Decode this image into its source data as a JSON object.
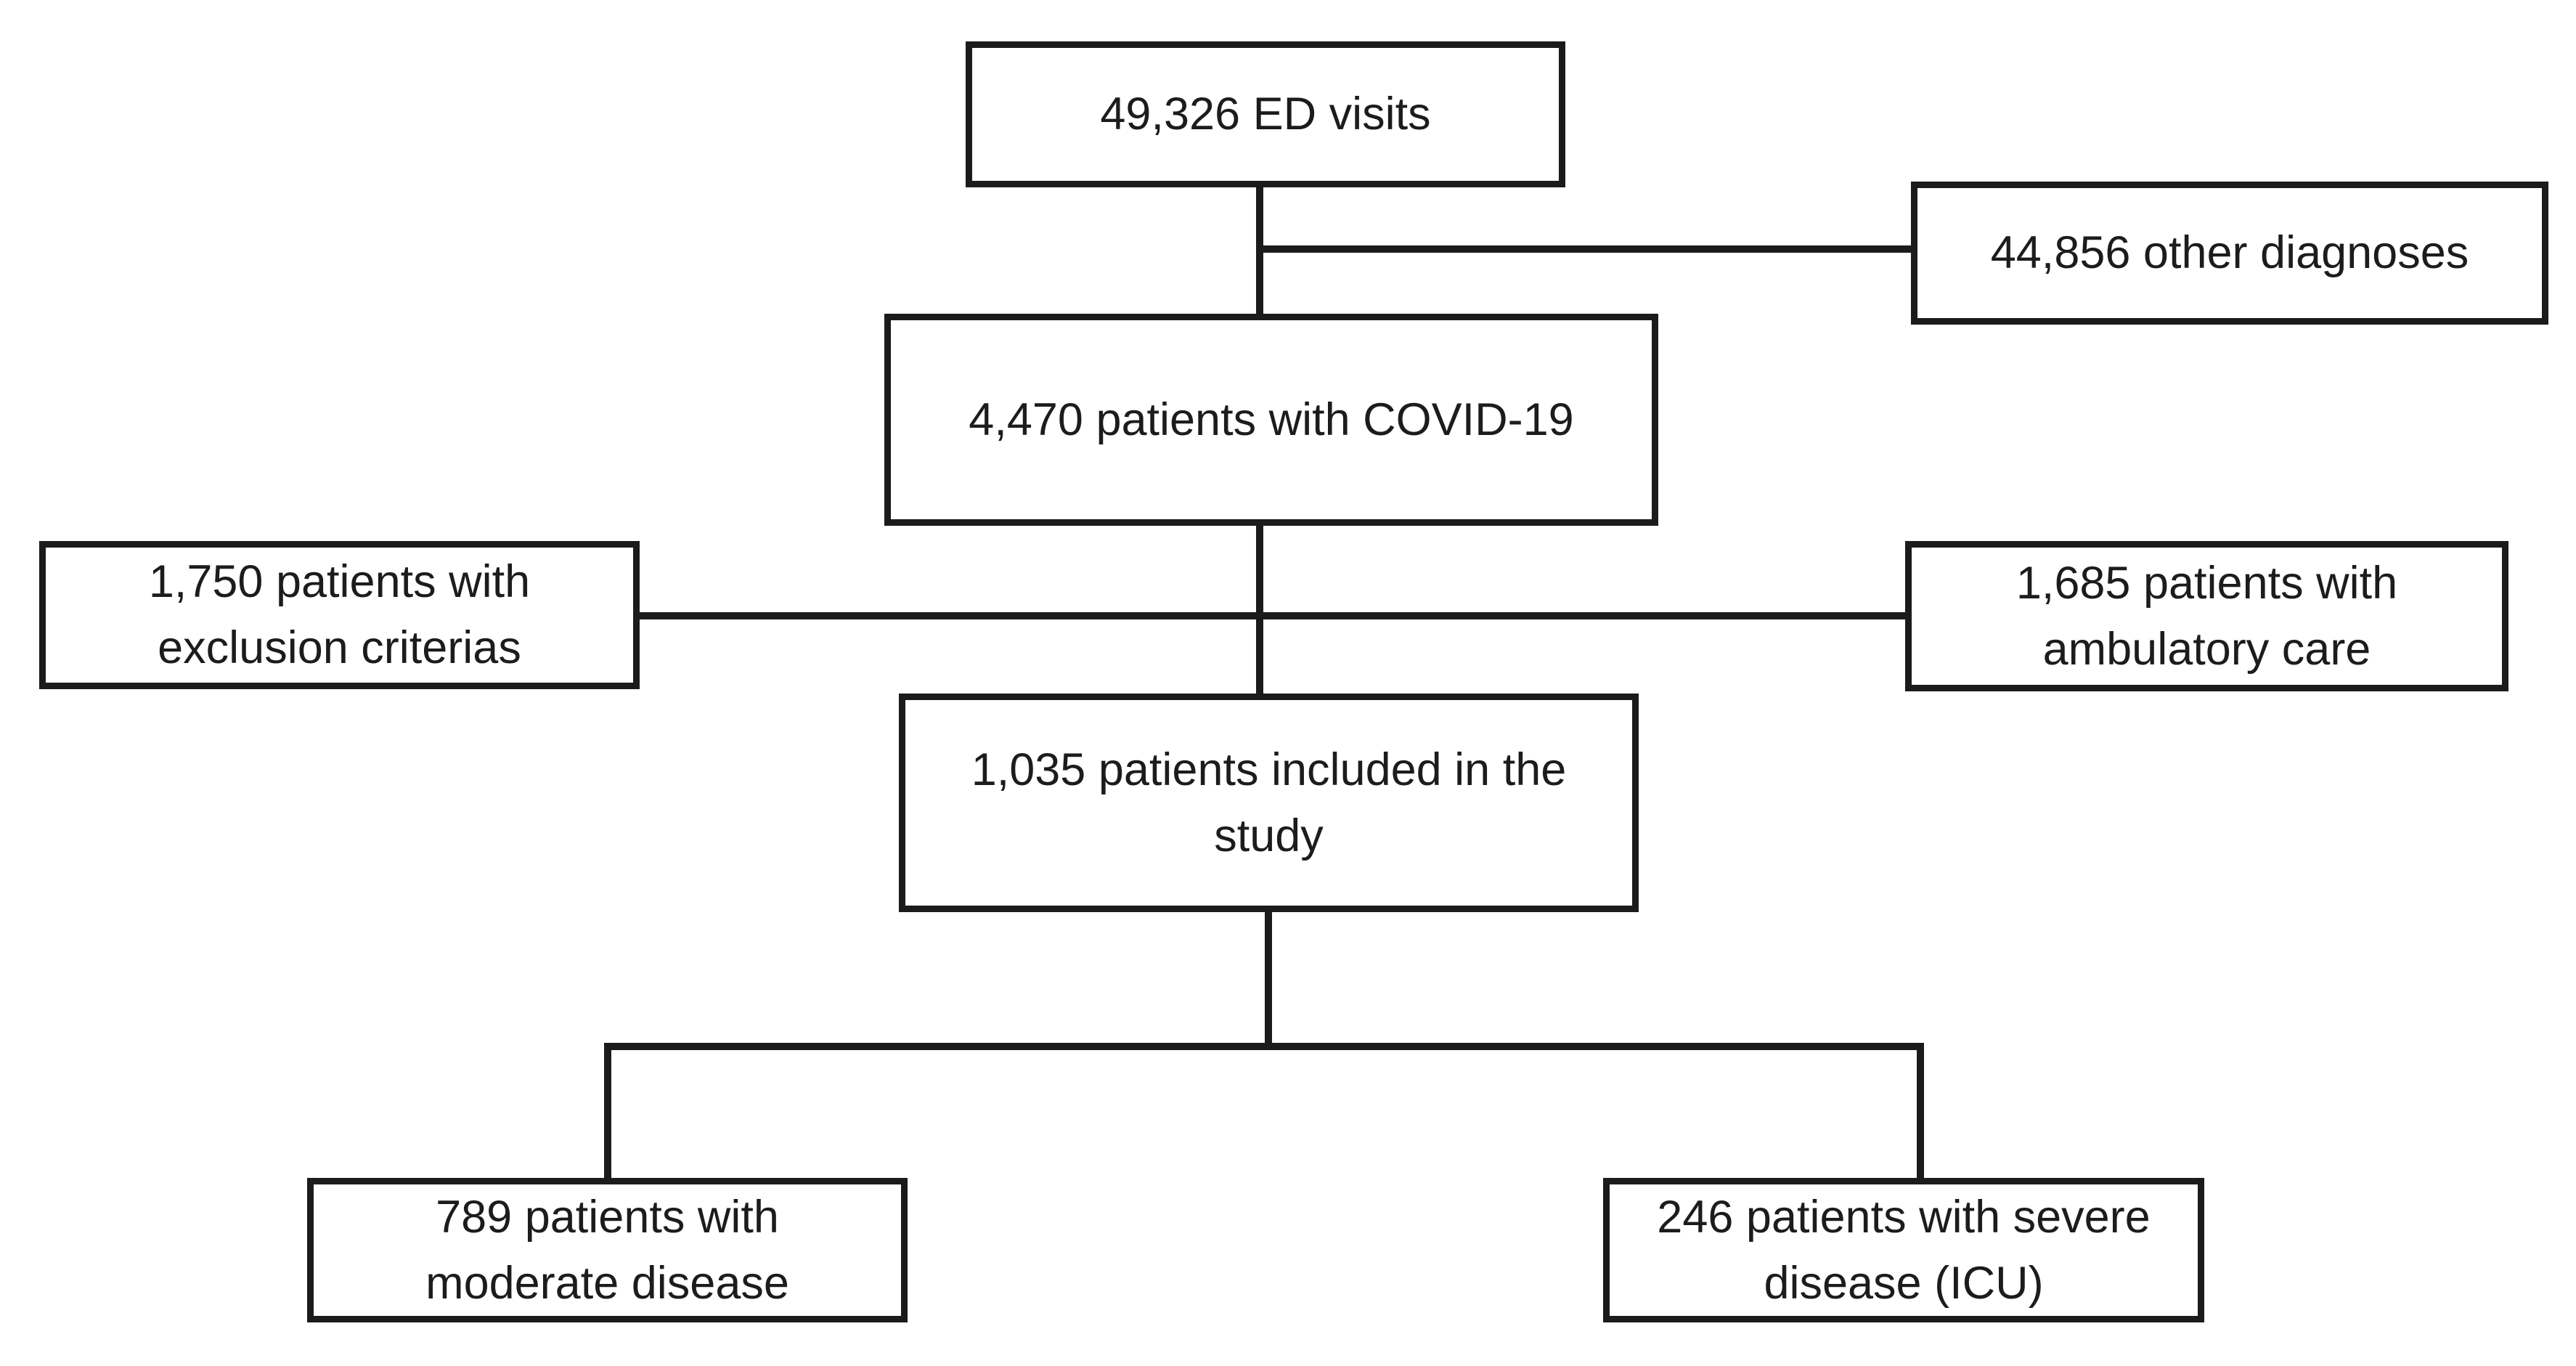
{
  "diagram": {
    "kind": "patient-flow-diagram",
    "nodes": [
      {
        "id": "ed-visits",
        "count": "49,326",
        "label": "49,326 ED visits"
      },
      {
        "id": "other-diagnoses",
        "count": "44,856",
        "label": "44,856 other diagnoses"
      },
      {
        "id": "covid-patients",
        "count": "4,470",
        "label": "4,470 patients with COVID-19"
      },
      {
        "id": "excluded-patients",
        "count": "1,750",
        "label": "1,750 patients with\nexclusion criterias"
      },
      {
        "id": "ambulatory-care",
        "count": "1,685",
        "label": "1,685 patients with\nambulatory care"
      },
      {
        "id": "included-patients",
        "count": "1,035",
        "label": "1,035 patients included in the\nstudy"
      },
      {
        "id": "moderate-disease",
        "count": "789",
        "label": "789 patients with\nmoderate disease"
      },
      {
        "id": "severe-disease",
        "count": "246",
        "label": "246 patients with severe\ndisease (ICU)"
      }
    ],
    "edges": [
      {
        "from": "ed-visits",
        "to": "other-diagnoses"
      },
      {
        "from": "ed-visits",
        "to": "covid-patients"
      },
      {
        "from": "covid-patients",
        "to": "excluded-patients"
      },
      {
        "from": "covid-patients",
        "to": "ambulatory-care"
      },
      {
        "from": "covid-patients",
        "to": "included-patients"
      },
      {
        "from": "included-patients",
        "to": "moderate-disease"
      },
      {
        "from": "included-patients",
        "to": "severe-disease"
      }
    ],
    "colors": {
      "background": "#ffffff",
      "line": "#1b1b1b",
      "text": "#1c1c1c"
    }
  }
}
